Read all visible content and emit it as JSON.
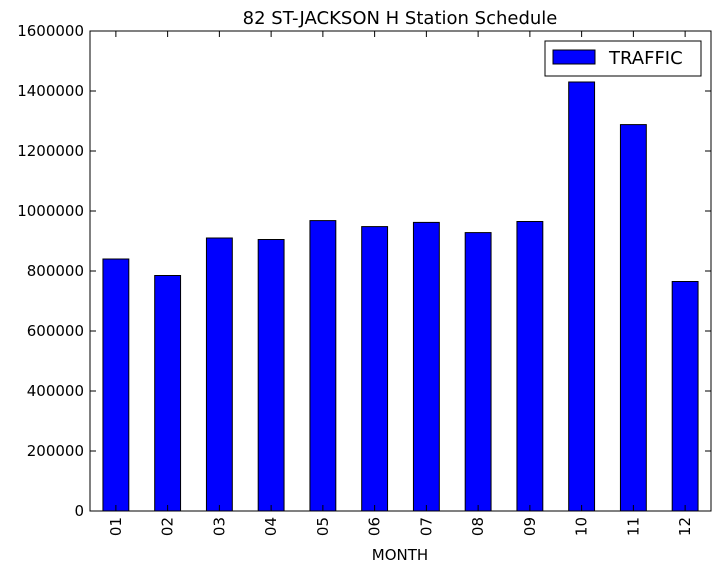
{
  "chart_data": {
    "type": "bar",
    "title": "82 ST-JACKSON H Station Schedule",
    "xlabel": "MONTH",
    "ylabel": "",
    "categories": [
      "01",
      "02",
      "03",
      "04",
      "05",
      "06",
      "07",
      "08",
      "09",
      "10",
      "11",
      "12"
    ],
    "series": [
      {
        "name": "TRAFFIC",
        "values": [
          840000,
          785000,
          910000,
          905000,
          968000,
          948000,
          962000,
          928000,
          965000,
          1430000,
          1288000,
          765000
        ]
      }
    ],
    "ylim": [
      0,
      1600000
    ],
    "yticks": [
      "0",
      "200000",
      "400000",
      "600000",
      "800000",
      "1000000",
      "1200000",
      "1400000",
      "1600000"
    ],
    "legend_position": "top-right",
    "grid": false,
    "colors": {
      "bar": "#0000ff",
      "edge": "#000000"
    }
  }
}
